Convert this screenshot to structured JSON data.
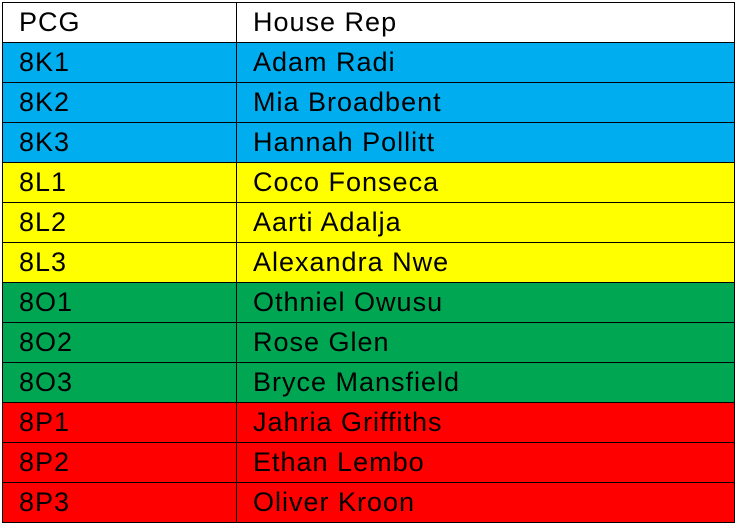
{
  "table": {
    "columns": {
      "pcg": "PCG",
      "rep": "House Rep"
    },
    "rows": [
      {
        "pcg": "8K1",
        "rep": "Adam Radi"
      },
      {
        "pcg": "8K2",
        "rep": "Mia Broadbent"
      },
      {
        "pcg": "8K3",
        "rep": "Hannah Pollitt"
      },
      {
        "pcg": "8L1",
        "rep": "Coco Fonseca"
      },
      {
        "pcg": "8L2",
        "rep": "Aarti Adalja"
      },
      {
        "pcg": "8L3",
        "rep": "Alexandra Nwe"
      },
      {
        "pcg": "8O1",
        "rep": "Othniel Owusu"
      },
      {
        "pcg": "8O2",
        "rep": "Rose Glen"
      },
      {
        "pcg": "8O3",
        "rep": "Bryce Mansfield"
      },
      {
        "pcg": "8P1",
        "rep": "Jahria Griffiths"
      },
      {
        "pcg": "8P2",
        "rep": "Ethan Lembo"
      },
      {
        "pcg": "8P3",
        "rep": "Oliver Kroon"
      }
    ]
  },
  "colors": {
    "header_bg": "#FFFFFF",
    "house_k_blue": "#00AEEF",
    "house_l_yellow": "#FFFF00",
    "house_o_green": "#00A651",
    "house_p_red": "#FF0000",
    "border": "#000000",
    "text": "#000000"
  },
  "chart_data": {
    "type": "table",
    "title": "",
    "columns": [
      "PCG",
      "House Rep"
    ],
    "rows": [
      [
        "8K1",
        "Adam Radi"
      ],
      [
        "8K2",
        "Mia Broadbent"
      ],
      [
        "8K3",
        "Hannah Pollitt"
      ],
      [
        "8L1",
        "Coco Fonseca"
      ],
      [
        "8L2",
        "Aarti Adalja"
      ],
      [
        "8L3",
        "Alexandra Nwe"
      ],
      [
        "8O1",
        "Othniel Owusu"
      ],
      [
        "8O2",
        "Rose Glen"
      ],
      [
        "8O3",
        "Bryce Mansfield"
      ],
      [
        "8P1",
        "Jahria Griffiths"
      ],
      [
        "8P2",
        "Ethan Lembo"
      ],
      [
        "8P3",
        "Oliver Kroon"
      ]
    ],
    "row_groups": [
      {
        "house": "8K",
        "color": "#00AEEF",
        "pcgs": [
          "8K1",
          "8K2",
          "8K3"
        ]
      },
      {
        "house": "8L",
        "color": "#FFFF00",
        "pcgs": [
          "8L1",
          "8L2",
          "8L3"
        ]
      },
      {
        "house": "8O",
        "color": "#00A651",
        "pcgs": [
          "8O1",
          "8O2",
          "8O3"
        ]
      },
      {
        "house": "8P",
        "color": "#FF0000",
        "pcgs": [
          "8P1",
          "8P2",
          "8P3"
        ]
      }
    ],
    "layout": {
      "header_background": "#FFFFFF",
      "grid": true,
      "border_color": "#000000"
    }
  }
}
